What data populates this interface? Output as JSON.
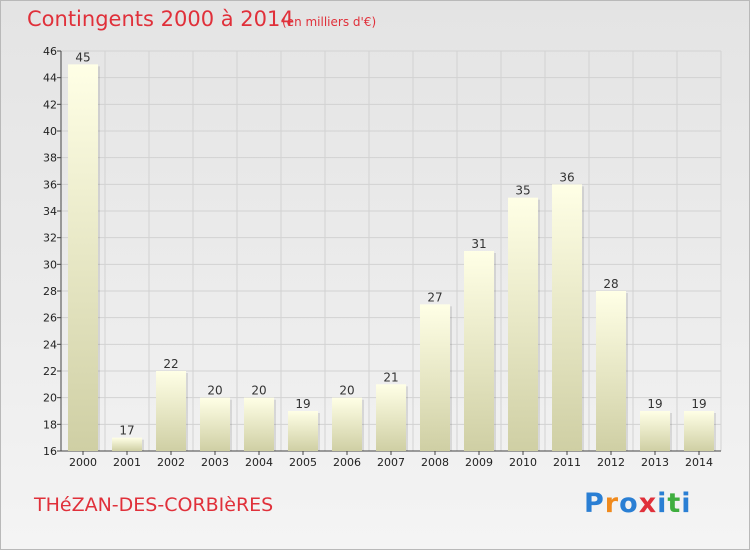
{
  "header": {
    "title": "Contingents 2000 à 2014",
    "subtitle": "(en milliers d'€)"
  },
  "footer": {
    "commune": "THéZAN-DES-CORBIèRES",
    "logo_letters": [
      "P",
      "r",
      "o",
      "x",
      "i",
      "t",
      "i"
    ]
  },
  "colors": {
    "title": "#e0303a",
    "bar_top": "#ffffe6",
    "bar_bottom": "#cfcfa4",
    "logo": [
      "#2a7fd4",
      "#f08a1c",
      "#2a7fd4",
      "#e0303a",
      "#2a7fd4",
      "#3fae3f",
      "#2a7fd4"
    ]
  },
  "chart_data": {
    "type": "bar",
    "title": "Contingents 2000 à 2014",
    "subtitle": "(en milliers d'€)",
    "categories": [
      "2000",
      "2001",
      "2002",
      "2003",
      "2004",
      "2005",
      "2006",
      "2007",
      "2008",
      "2009",
      "2010",
      "2011",
      "2012",
      "2013",
      "2014"
    ],
    "values": [
      45,
      17,
      22,
      20,
      20,
      19,
      20,
      21,
      27,
      31,
      35,
      36,
      28,
      19,
      19
    ],
    "ylim": [
      16,
      46
    ],
    "yticks": [
      16,
      18,
      20,
      22,
      24,
      26,
      28,
      30,
      32,
      34,
      36,
      38,
      40,
      42,
      44,
      46
    ],
    "grid": true,
    "legend": "none"
  }
}
